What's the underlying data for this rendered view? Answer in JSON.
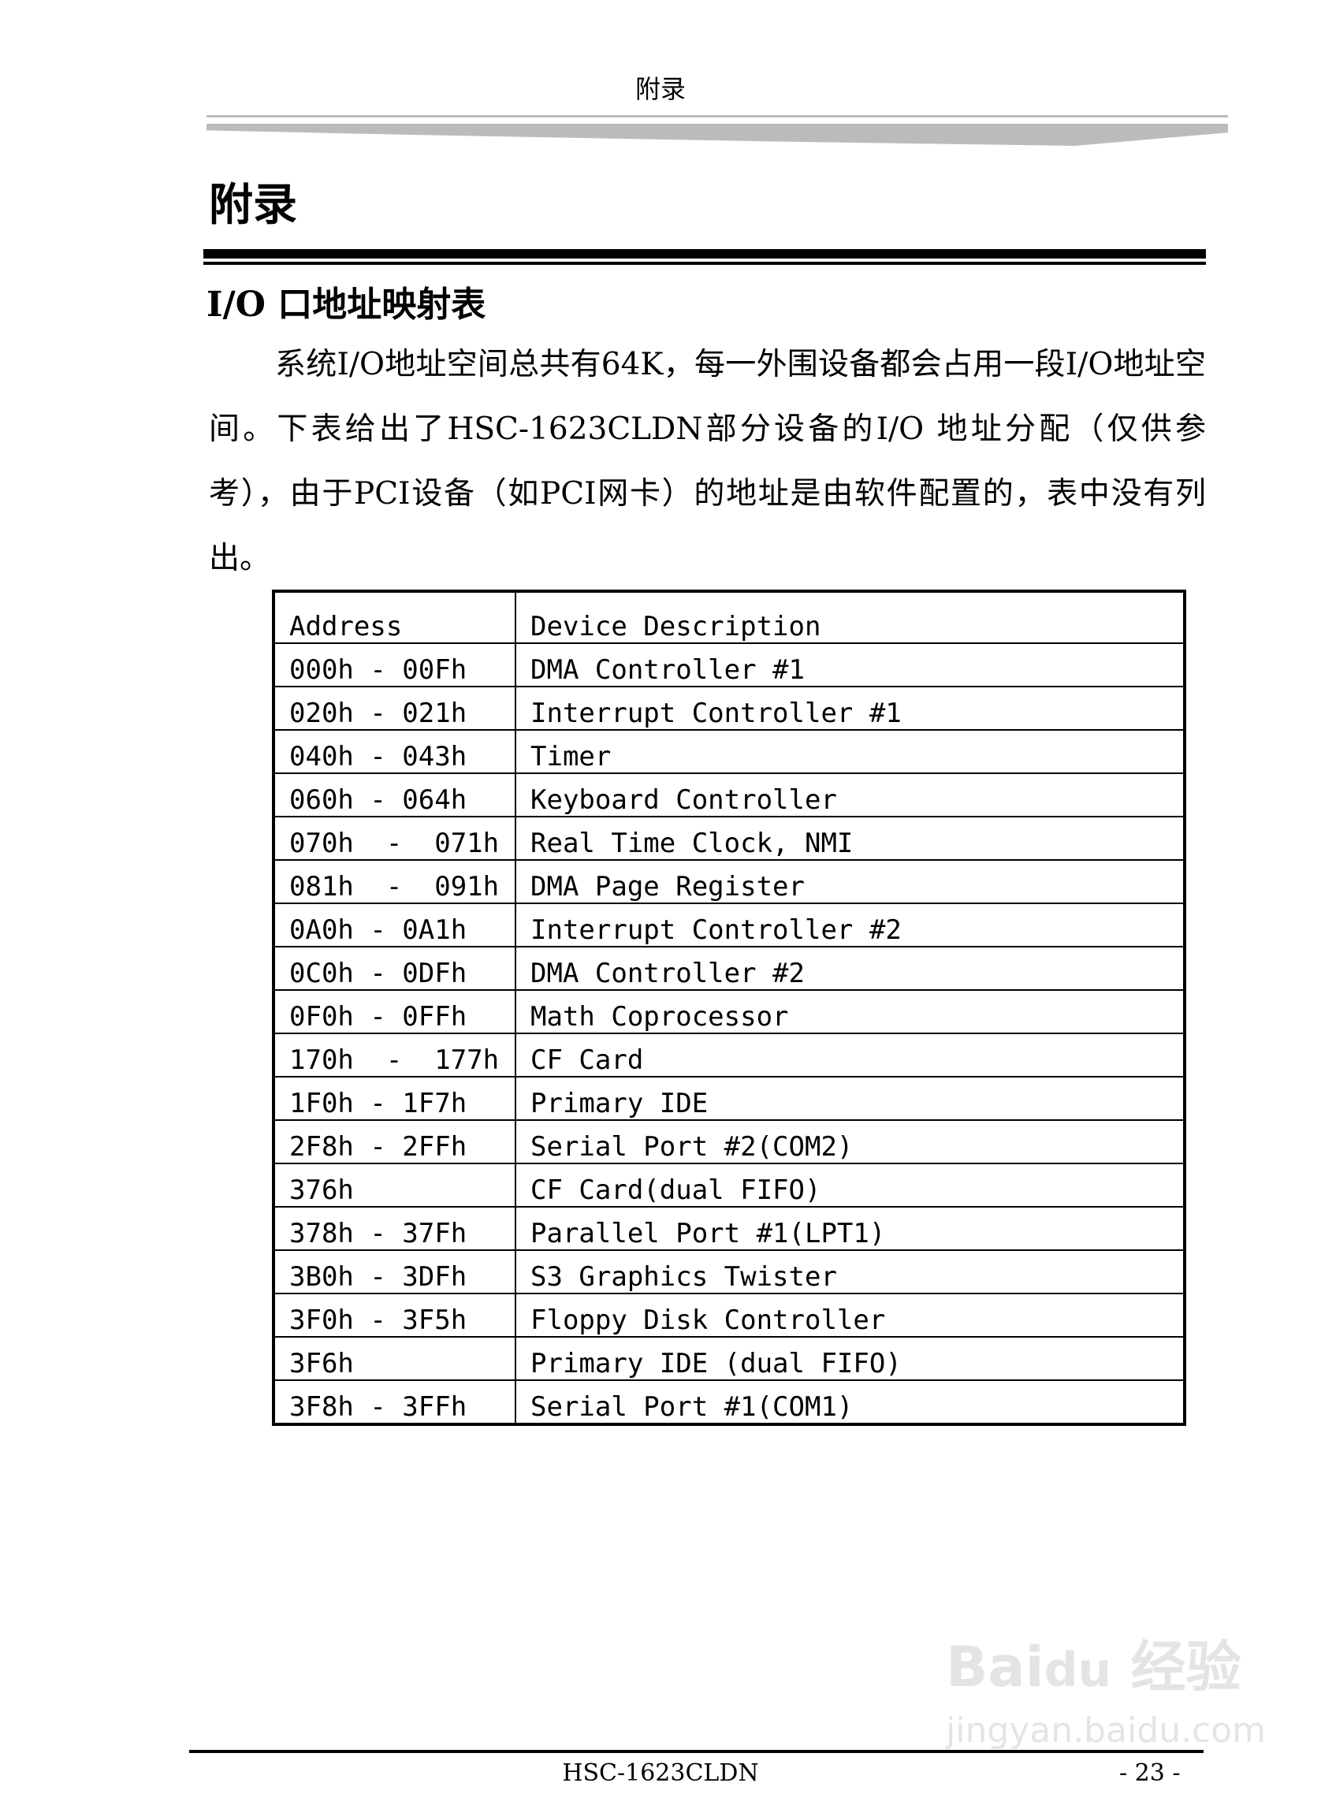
{
  "header": {
    "running_title": "附录"
  },
  "title": "附录",
  "section": {
    "heading": "I/O 口地址映射表",
    "paragraph": "系统I/O地址空间总共有64K，每一外围设备都会占用一段I/O地址空间。下表给出了HSC-1623CLDN部分设备的I/O 地址分配（仅供参考），由于PCI设备（如PCI网卡）的地址是由软件配置的，表中没有列出。"
  },
  "table": {
    "headers": [
      "Address",
      "Device Description"
    ],
    "rows": [
      [
        "000h - 00Fh",
        "DMA Controller #1"
      ],
      [
        "020h - 021h",
        "Interrupt Controller #1"
      ],
      [
        "040h - 043h",
        "Timer"
      ],
      [
        "060h - 064h",
        "Keyboard Controller"
      ],
      [
        "070h  -  071h",
        "Real Time Clock, NMI"
      ],
      [
        "081h  -  091h",
        "DMA Page Register"
      ],
      [
        "0A0h - 0A1h",
        "Interrupt Controller #2"
      ],
      [
        "0C0h - 0DFh",
        "DMA Controller #2"
      ],
      [
        "0F0h - 0FFh",
        "Math Coprocessor"
      ],
      [
        "170h  -  177h",
        "CF Card"
      ],
      [
        "1F0h - 1F7h",
        "Primary IDE"
      ],
      [
        "2F8h - 2FFh",
        "Serial Port #2(COM2)"
      ],
      [
        "376h",
        "CF Card(dual FIFO)"
      ],
      [
        "378h - 37Fh",
        "Parallel Port #1(LPT1)"
      ],
      [
        "3B0h - 3DFh",
        "S3 Graphics Twister"
      ],
      [
        "3F0h - 3F5h",
        "Floppy Disk Controller"
      ],
      [
        "3F6h",
        "Primary IDE (dual FIFO)"
      ],
      [
        "3F8h - 3FFh",
        "Serial Port #1(COM1)"
      ]
    ]
  },
  "footer": {
    "model": "HSC-1623CLDN",
    "page": "- 23 -"
  },
  "watermark": {
    "logo": "Bai du 经验",
    "url": "jingyan.baidu.com"
  }
}
